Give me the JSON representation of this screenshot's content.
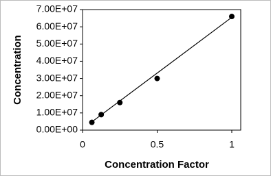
{
  "chart_data": {
    "type": "scatter",
    "x_label": "Concentration Factor",
    "y_label": "Concentration",
    "x": [
      0.0625,
      0.125,
      0.25,
      0.5,
      1
    ],
    "values": [
      4500000,
      9000000,
      16000000,
      30000000,
      66000000
    ],
    "color": "#000000",
    "trendline": {
      "x": [
        0.0625,
        1
      ],
      "values": [
        4800000,
        65500000
      ]
    },
    "xlim": [
      0,
      1.06
    ],
    "xticks": [
      0,
      0.5,
      1
    ],
    "ylim": [
      0,
      70000000
    ],
    "yticks": [
      {
        "value": 0,
        "label": "0.00E+00"
      },
      {
        "value": 10000000,
        "label": "1.00E+07"
      },
      {
        "value": 20000000,
        "label": "2.00E+07"
      },
      {
        "value": 30000000,
        "label": "3.00E+07"
      },
      {
        "value": 40000000,
        "label": "4.00E+07"
      },
      {
        "value": 50000000,
        "label": "5.00E+07"
      },
      {
        "value": 60000000,
        "label": "6.00E+07"
      },
      {
        "value": 70000000,
        "label": "7.00E+07"
      }
    ]
  }
}
